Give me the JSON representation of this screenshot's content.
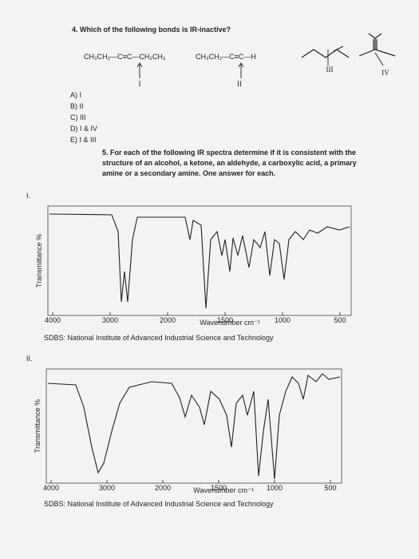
{
  "question4": {
    "title": "4. Which of the following bonds is IR-inactive?",
    "molecules": [
      {
        "formula": "CH₃CH₂—C≡C—CH₂CH₃",
        "label": "I"
      },
      {
        "formula": "CH₃CH₂—C≡C—H",
        "label": "II"
      },
      {
        "label": "III"
      },
      {
        "label": "IV"
      }
    ],
    "choices": [
      "A) I",
      "B) II",
      "C) III",
      "D) I & IV",
      "E) I & III"
    ]
  },
  "question5": {
    "text": "5. For each of the following IR spectra determine if it is consistent with the structure of an alcohol, a ketone, an aldehyde, a carboxylic acid, a primary amine or a secondary amine. One answer for each.",
    "spectra": [
      {
        "label": "I.",
        "y_axis": "Transmittance %",
        "x_axis": "Wavenumber cm⁻¹",
        "x_ticks": [
          "4000",
          "3000",
          "2000",
          "1500",
          "1000",
          "500"
        ],
        "source": "SDBS: National Institute of Advanced Industrial Science and Technology"
      },
      {
        "label": "II.",
        "y_axis": "Transmittance %",
        "x_axis": "Wavenumber cm⁻¹",
        "x_ticks": [
          "4000",
          "3000",
          "2000",
          "1500",
          "1000",
          "500"
        ],
        "source": "SDBS: National Institute of Advanced Industrial Science and Technology"
      }
    ]
  }
}
